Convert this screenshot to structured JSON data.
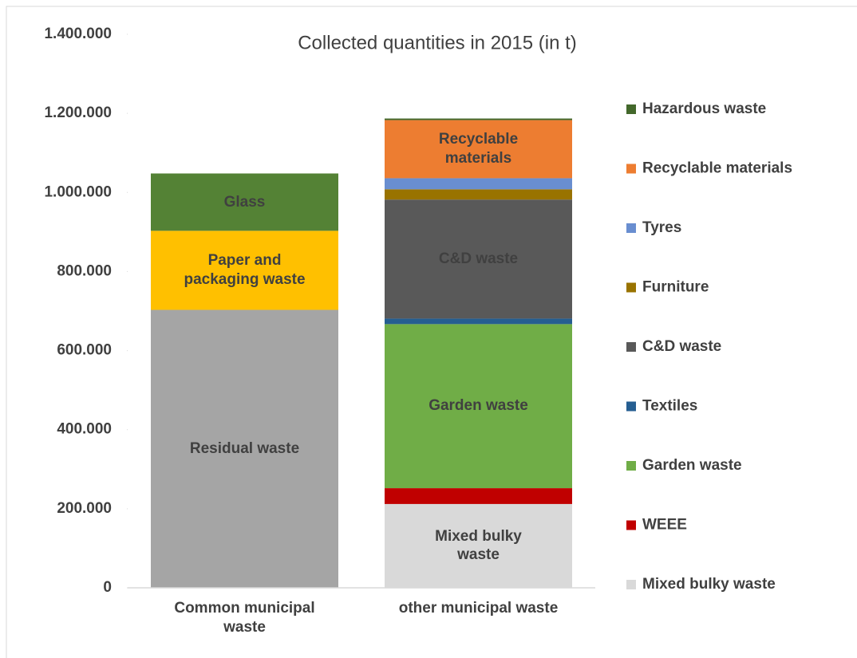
{
  "chart_data": {
    "type": "stacked_bar",
    "title": "Collected quantities in 2015 (in t)",
    "categories": [
      "Common municipal waste",
      "other municipal waste"
    ],
    "series": [
      {
        "name": "Residual waste",
        "color": "#a5a5a5",
        "values": [
          703000,
          null
        ]
      },
      {
        "name": "Paper and packaging waste",
        "color": "#ffc000",
        "values": [
          200000,
          null
        ]
      },
      {
        "name": "Glass",
        "color": "#548235",
        "values": [
          145000,
          null
        ]
      },
      {
        "name": "Mixed bulky waste",
        "color": "#d9d9d9",
        "values": [
          null,
          212000
        ]
      },
      {
        "name": "WEEE",
        "color": "#c00000",
        "values": [
          null,
          40000
        ]
      },
      {
        "name": "Garden waste",
        "color": "#70ad47",
        "values": [
          null,
          415000
        ]
      },
      {
        "name": "Textiles",
        "color": "#255e91",
        "values": [
          null,
          14000
        ]
      },
      {
        "name": "C&D waste",
        "color": "#595959",
        "values": [
          null,
          301000
        ]
      },
      {
        "name": "Furniture",
        "color": "#997300",
        "values": [
          null,
          26000
        ]
      },
      {
        "name": "Tyres",
        "color": "#698ed0",
        "values": [
          null,
          28000
        ]
      },
      {
        "name": "Recyclable materials",
        "color": "#ed7d31",
        "values": [
          null,
          147000
        ]
      },
      {
        "name": "Hazardous waste",
        "color": "#43682b",
        "values": [
          null,
          4000
        ]
      }
    ],
    "ylim": [
      0,
      1400000
    ],
    "yticks": [
      0,
      {
        "value": 200000,
        "label": "200.000"
      },
      {
        "value": 400000,
        "label": "400.000"
      },
      {
        "value": 600000,
        "label": "600.000"
      },
      {
        "value": 800000,
        "label": "800.000"
      },
      {
        "value": 1000000,
        "label": "1.000.000"
      },
      {
        "value": 1200000,
        "label": "1.200.000"
      },
      {
        "value": 1400000,
        "label": "1.400.000"
      }
    ],
    "legend": "right",
    "grid": false
  }
}
